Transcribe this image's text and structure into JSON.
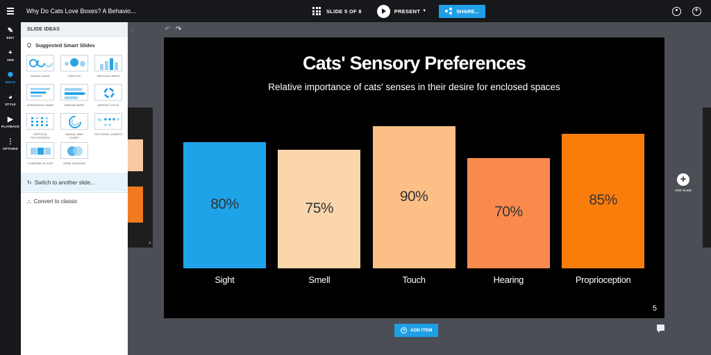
{
  "app": {
    "doc_title": "Why Do Cats Love Boxes? A Behavio...",
    "slide_counter": "SLIDE 5 OF 8",
    "present_label": "PRESENT",
    "share_label": "SHARE..."
  },
  "rail": {
    "items": [
      {
        "label": "EDIT",
        "icon": "edit-icon"
      },
      {
        "label": "ADD",
        "icon": "plus-icon"
      },
      {
        "label": "IDEAS",
        "icon": "lightbulb-icon"
      },
      {
        "label": "STYLE",
        "icon": "palette-icon"
      },
      {
        "label": "PLAYBACK",
        "icon": "play-icon"
      },
      {
        "label": "OPTIONS",
        "icon": "more-vertical-icon"
      }
    ],
    "active": "IDEAS"
  },
  "panel": {
    "header": "SLIDE IDEAS",
    "suggested_label": "Suggested Smart Slides",
    "tiles": [
      {
        "label": "RADIAL BARS"
      },
      {
        "label": "CIRCLES"
      },
      {
        "label": "VERTICAL BARS"
      },
      {
        "label": "HORIZONTAL BARS"
      },
      {
        "label": "ARROW BARS"
      },
      {
        "label": "ARROW CYCLE"
      },
      {
        "label": "VERTICAL PICTOGRAPH"
      },
      {
        "label": "RADIAL BAR CHART"
      },
      {
        "label": "PICTORIAL CHARTS"
      },
      {
        "label": "COMPARE SLICES"
      },
      {
        "label": "VENN DIAGRAM"
      }
    ],
    "switch_label": "Switch to another slide...",
    "convert_label": "Convert to classic"
  },
  "slide": {
    "title": "Cats' Sensory Preferences",
    "subtitle": "Relative importance of cats' senses in their desire for enclosed spaces",
    "number": "5"
  },
  "chart_data": {
    "type": "bar",
    "categories": [
      "Sight",
      "Smell",
      "Touch",
      "Hearing",
      "Proprioception"
    ],
    "values": [
      80,
      75,
      90,
      70,
      85
    ],
    "data_labels": [
      "80%",
      "75%",
      "90%",
      "70%",
      "85%"
    ],
    "colors": [
      "#1fa3e8",
      "#fbd6ad",
      "#fcbf86",
      "#f98a4e",
      "#fa7d0c"
    ],
    "title": "Cats' Sensory Preferences",
    "ylim": [
      0,
      100
    ],
    "grid": false
  },
  "controls": {
    "add_slide_label": "ADD SLIDE",
    "add_item_label": "ADD ITEM",
    "prev_slide_number": "4"
  }
}
